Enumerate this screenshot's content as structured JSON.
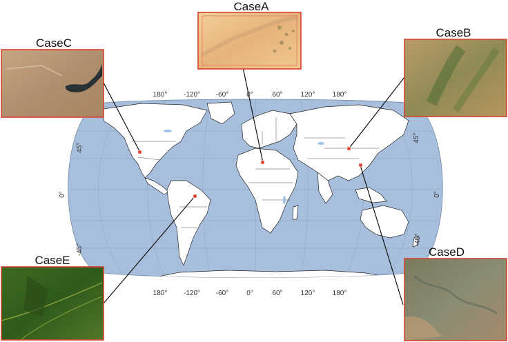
{
  "map": {
    "projection": "robinson",
    "top_lon_labels": [
      "180°",
      "-120°",
      "-60°",
      "0°",
      "60°",
      "120°",
      "180°"
    ],
    "bottom_lon_labels": [
      "180°",
      "-120°",
      "-60°",
      "0°",
      "60°",
      "120°",
      "180°"
    ],
    "left_lat_labels": [
      "45°",
      "0°",
      "-45°"
    ],
    "right_lat_labels": [
      "45°",
      "0°",
      "-45°"
    ],
    "colors": {
      "ocean": "#a7bfdc",
      "land": "#ffffff",
      "borders": "#222222",
      "grid": "#8fa3ba"
    }
  },
  "cases": [
    {
      "id": "A",
      "label": "CaseA",
      "palette": "desert"
    },
    {
      "id": "B",
      "label": "CaseB",
      "palette": "steppe"
    },
    {
      "id": "C",
      "label": "CaseC",
      "palette": "arid-lake"
    },
    {
      "id": "D",
      "label": "CaseD",
      "palette": "delta"
    },
    {
      "id": "E",
      "label": "CaseE",
      "palette": "forest"
    }
  ],
  "marker_color": "#e43b2b"
}
